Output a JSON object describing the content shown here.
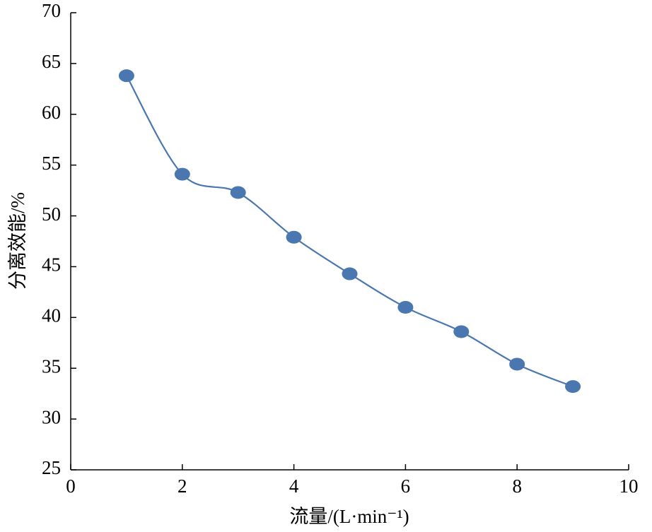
{
  "chart_data": {
    "type": "line",
    "smooth": true,
    "markers": true,
    "x_label": "流量/(L·min⁻¹)",
    "y_label": "分离效能/%",
    "x": [
      1,
      2,
      3,
      4,
      5,
      6,
      7,
      8,
      9
    ],
    "values": [
      63.8,
      54.1,
      52.3,
      47.9,
      44.3,
      41.0,
      38.6,
      35.4,
      33.2
    ],
    "color": "#4a77b0",
    "xlim": [
      0,
      10
    ],
    "xticks": [
      0,
      2,
      4,
      6,
      8,
      10
    ],
    "ylim": [
      25,
      70
    ],
    "yticks": [
      25,
      30,
      35,
      40,
      45,
      50,
      55,
      60,
      65,
      70
    ]
  }
}
